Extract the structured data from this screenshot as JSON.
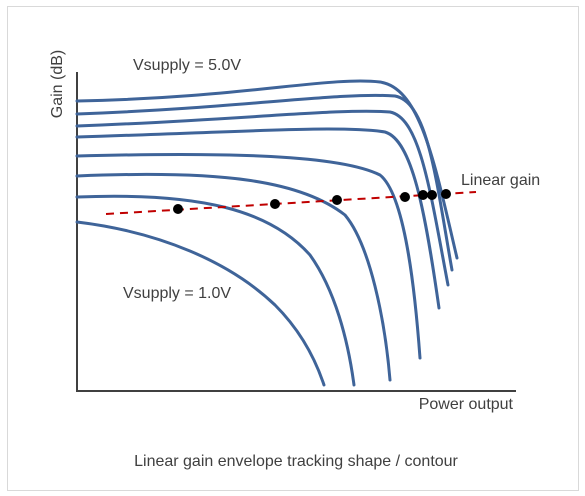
{
  "figure": {
    "y_axis_label": "Gain (dB)",
    "x_axis_label": "Power output",
    "top_curve_label": "Vsupply = 5.0V",
    "bottom_curve_label": "Vsupply = 1.0V",
    "linear_gain_label": "Linear gain",
    "caption": "Linear gain envelope tracking shape / contour"
  },
  "colors": {
    "curve": "#3f6499",
    "linear_gain_line": "#c00000",
    "operating_point": "#000000",
    "axis": "#404040",
    "text": "#404040"
  },
  "curves": {
    "count": 8,
    "series": [
      {
        "id": "curve-1",
        "operating_point": true
      },
      {
        "id": "curve-2",
        "operating_point": true
      },
      {
        "id": "curve-3",
        "operating_point": true
      },
      {
        "id": "curve-4",
        "operating_point": true
      },
      {
        "id": "curve-5",
        "operating_point": true
      },
      {
        "id": "curve-6",
        "operating_point": true
      },
      {
        "id": "curve-7",
        "operating_point": false
      },
      {
        "id": "curve-8",
        "operating_point": false
      }
    ]
  }
}
